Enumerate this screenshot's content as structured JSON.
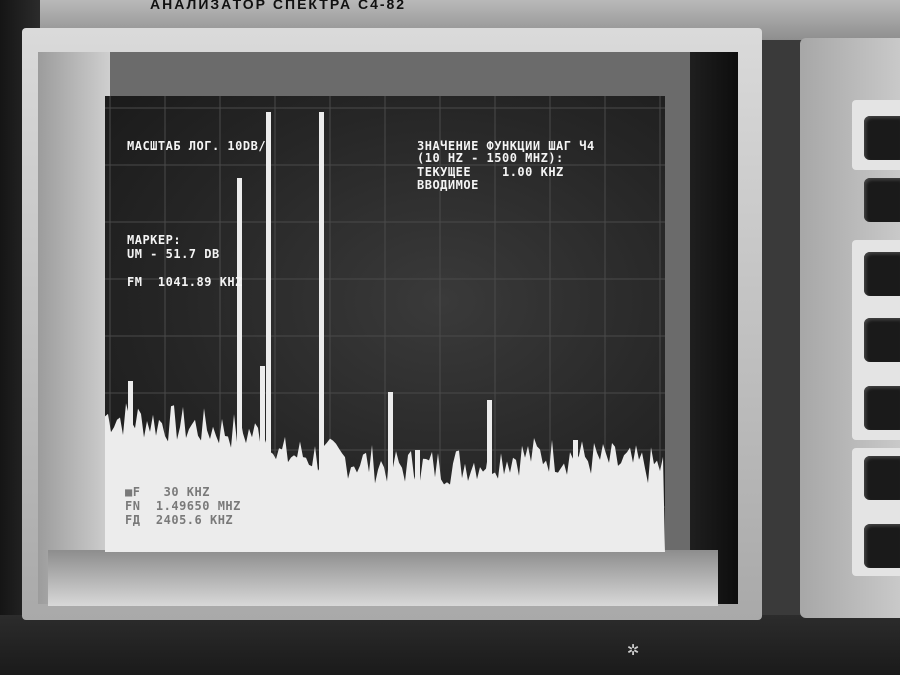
{
  "device": {
    "model_label": "АНАЛИЗАТОР СПЕКТРА С4-82"
  },
  "screen": {
    "scale_text": "МАСШТАБ ЛОГ. 10DB/",
    "function_value": {
      "line1": "ЗНАЧЕНИЕ ФУНКЦИИ ШАГ Ч4",
      "line2": "(10 HZ - 1500 MHZ):",
      "line3": "ТЕКУЩЕЕ    1.00 KHZ",
      "line4": "ВВОДИМОЕ"
    },
    "marker": {
      "label": "МАРКЕР:",
      "level": "UM - 51.7 DB",
      "freq": "FM  1041.89 KHZ"
    },
    "bottom_readout": {
      "line1": "■F   30 KHZ",
      "line2": "FN  1.49650 MHZ",
      "line3": "FД  2405.6 KHZ"
    }
  },
  "colors": {
    "trace": "#ececec",
    "screen_bg": "#262626",
    "grid": "#4a4a4a"
  },
  "icons": {
    "bottom_symbol": "gear-icon"
  }
}
